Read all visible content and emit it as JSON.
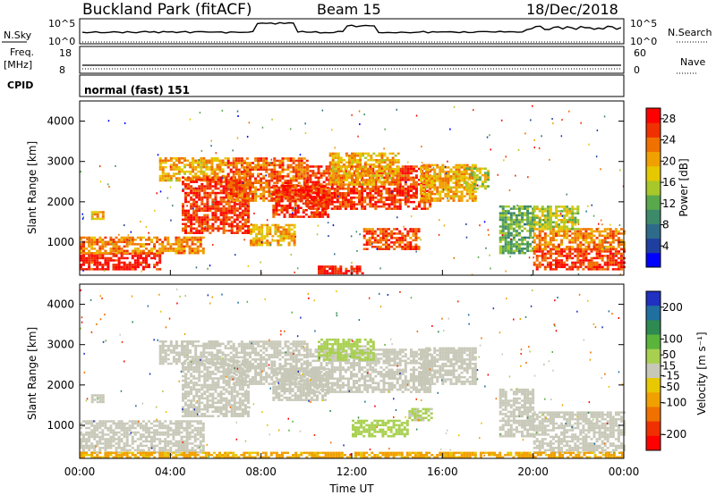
{
  "header": {
    "station": "Buckland Park (fitACF)",
    "beam": "Beam 15",
    "date": "18/Dec/2018"
  },
  "strip": {
    "nsky_label": "N.Sky",
    "nsky_ticks": [
      "10^5",
      "10^0"
    ],
    "nsearch_label": "N.Search",
    "nsearch_ticks": [
      "10^5",
      "10^0"
    ],
    "freq_label": "Freq.",
    "freq_unit": "[MHz]",
    "freq_ticks": [
      "18",
      "8"
    ],
    "nave_label": "Nave",
    "nave_ticks": [
      "60",
      "0"
    ],
    "cpid_label": "CPID",
    "cpid_value": "normal (fast) 151"
  },
  "colors": {
    "power": [
      "#0000ff",
      "#1f3fa0",
      "#2e6b8a",
      "#3d8a6a",
      "#5aa84c",
      "#a8c82a",
      "#e6c800",
      "#f0a000",
      "#f07000",
      "#f03000",
      "#ff0000"
    ],
    "velocity": [
      "#2030c0",
      "#1f6fa0",
      "#2e8a50",
      "#5ab43c",
      "#a8d050",
      "#c8c8b8",
      "#e8c800",
      "#f0a000",
      "#f07000",
      "#f03000",
      "#ff0000"
    ]
  },
  "chart_data": [
    {
      "type": "heatmap",
      "name": "power",
      "xlabel": "Time UT",
      "ylabel": "Slant Range [km]",
      "xticks": [
        "00:00",
        "04:00",
        "08:00",
        "12:00",
        "16:00",
        "20:00",
        "00:00"
      ],
      "xlim": [
        0,
        24
      ],
      "yticks": [
        1000,
        2000,
        3000,
        4000
      ],
      "ylim": [
        180,
        4500
      ],
      "colorbar": {
        "label": "Power [dB]",
        "ticks": [
          4,
          8,
          12,
          16,
          20,
          24,
          28
        ],
        "range": [
          0,
          30
        ]
      },
      "regions": [
        {
          "t": [
            0.0,
            3.5
          ],
          "r": [
            300,
            700
          ],
          "value": 28
        },
        {
          "t": [
            0.0,
            5.5
          ],
          "r": [
            700,
            1100
          ],
          "value": 22
        },
        {
          "t": [
            0.5,
            1.0
          ],
          "r": [
            1550,
            1750
          ],
          "value": 20
        },
        {
          "t": [
            3.5,
            6.5
          ],
          "r": [
            2500,
            3100
          ],
          "value": 20
        },
        {
          "t": [
            4.5,
            7.5
          ],
          "r": [
            1200,
            2600
          ],
          "value": 26
        },
        {
          "t": [
            6.5,
            10.0
          ],
          "r": [
            2000,
            3100
          ],
          "value": 24
        },
        {
          "t": [
            7.5,
            9.5
          ],
          "r": [
            900,
            1400
          ],
          "value": 20
        },
        {
          "t": [
            8.5,
            11.0
          ],
          "r": [
            1600,
            2400
          ],
          "value": 27
        },
        {
          "t": [
            10.0,
            15.5
          ],
          "r": [
            1800,
            2900
          ],
          "value": 26
        },
        {
          "t": [
            11.0,
            14.0
          ],
          "r": [
            2400,
            3200
          ],
          "value": 20
        },
        {
          "t": [
            12.5,
            15.0
          ],
          "r": [
            800,
            1300
          ],
          "value": 25
        },
        {
          "t": [
            15.0,
            17.5
          ],
          "r": [
            2000,
            2900
          ],
          "value": 20
        },
        {
          "t": [
            17.0,
            18.0
          ],
          "r": [
            2300,
            2800
          ],
          "value": 16
        },
        {
          "t": [
            18.5,
            20.0
          ],
          "r": [
            700,
            1900
          ],
          "value": 12
        },
        {
          "t": [
            20.0,
            24.0
          ],
          "r": [
            300,
            800
          ],
          "value": 26
        },
        {
          "t": [
            20.0,
            24.0
          ],
          "r": [
            800,
            1300
          ],
          "value": 22
        },
        {
          "t": [
            20.0,
            22.0
          ],
          "r": [
            1300,
            1900
          ],
          "value": 16
        },
        {
          "t": [
            10.5,
            12.5
          ],
          "r": [
            200,
            400
          ],
          "value": 28
        }
      ]
    },
    {
      "type": "heatmap",
      "name": "velocity",
      "xlabel": "Time UT",
      "ylabel": "Slant Range [km]",
      "xticks": [
        "00:00",
        "04:00",
        "08:00",
        "12:00",
        "16:00",
        "20:00",
        "00:00"
      ],
      "xlim": [
        0,
        24
      ],
      "yticks": [
        1000,
        2000,
        3000,
        4000
      ],
      "ylim": [
        180,
        4500
      ],
      "colorbar": {
        "label": "Velocity [m s⁻¹]",
        "ticks": [
          200,
          100,
          50,
          15,
          -15,
          -50,
          -100,
          -200
        ],
        "range": [
          -250,
          250
        ]
      },
      "regions": [
        {
          "t": [
            0.0,
            5.5
          ],
          "r": [
            300,
            1100
          ],
          "value": 0
        },
        {
          "t": [
            0.5,
            1.0
          ],
          "r": [
            1550,
            1750
          ],
          "value": 0
        },
        {
          "t": [
            3.5,
            6.5
          ],
          "r": [
            2500,
            3100
          ],
          "value": 0
        },
        {
          "t": [
            4.5,
            7.5
          ],
          "r": [
            1200,
            2600
          ],
          "value": 0
        },
        {
          "t": [
            6.5,
            10.0
          ],
          "r": [
            2000,
            3100
          ],
          "value": 0
        },
        {
          "t": [
            8.5,
            11.0
          ],
          "r": [
            1600,
            2400
          ],
          "value": 0
        },
        {
          "t": [
            10.0,
            15.5
          ],
          "r": [
            1800,
            2900
          ],
          "value": 0
        },
        {
          "t": [
            10.5,
            13.0
          ],
          "r": [
            2600,
            3100
          ],
          "value": 40
        },
        {
          "t": [
            12.0,
            14.5
          ],
          "r": [
            700,
            1100
          ],
          "value": 45
        },
        {
          "t": [
            14.5,
            15.5
          ],
          "r": [
            1100,
            1400
          ],
          "value": 30
        },
        {
          "t": [
            15.0,
            17.5
          ],
          "r": [
            2000,
            2900
          ],
          "value": 0
        },
        {
          "t": [
            18.5,
            20.0
          ],
          "r": [
            700,
            1900
          ],
          "value": 0
        },
        {
          "t": [
            20.0,
            24.0
          ],
          "r": [
            300,
            1300
          ],
          "value": 0
        },
        {
          "t": [
            0.0,
            24.0
          ],
          "r": [
            180,
            320
          ],
          "value": -80
        }
      ]
    }
  ]
}
